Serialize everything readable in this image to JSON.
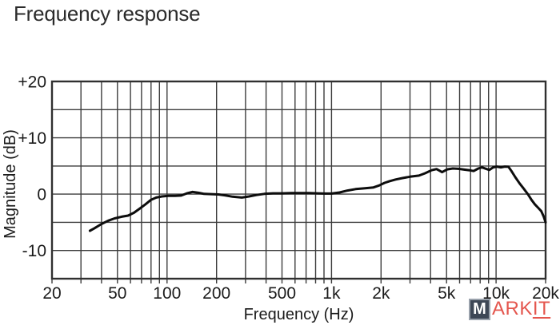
{
  "page": {
    "title": "Frequency response"
  },
  "chart_data": {
    "type": "line",
    "title": "Frequency response",
    "xlabel": "Frequency (Hz)",
    "ylabel": "Magnitude (dB)",
    "x_scale": "log",
    "xlim": [
      20,
      20000
    ],
    "ylim": [
      -15,
      20
    ],
    "grid": true,
    "legend": "none",
    "grid_color": "#3c3c3c",
    "border_color": "#303030",
    "label_color": "#1b1b1b",
    "y_gridline_step": 5,
    "x_gridlines": [
      20,
      30,
      40,
      50,
      60,
      70,
      80,
      90,
      100,
      200,
      300,
      400,
      500,
      600,
      700,
      800,
      900,
      1000,
      2000,
      3000,
      4000,
      5000,
      6000,
      7000,
      8000,
      9000,
      10000,
      20000
    ],
    "x_major_ticks": [
      {
        "value": 20,
        "label": "20"
      },
      {
        "value": 50,
        "label": "50"
      },
      {
        "value": 100,
        "label": "100"
      },
      {
        "value": 200,
        "label": "200"
      },
      {
        "value": 500,
        "label": "500"
      },
      {
        "value": 1000,
        "label": "1k"
      },
      {
        "value": 2000,
        "label": "2k"
      },
      {
        "value": 5000,
        "label": "5k"
      },
      {
        "value": 10000,
        "label": "10k"
      },
      {
        "value": 20000,
        "label": "20k"
      }
    ],
    "y_labeled_ticks": [
      {
        "value": 20,
        "label": "+20"
      },
      {
        "value": 10,
        "label": "+10"
      },
      {
        "value": 0,
        "label": "0"
      },
      {
        "value": -10,
        "label": "-10"
      }
    ],
    "series": [
      {
        "name": "Frequency response curve",
        "color": "#0d0d0d",
        "points": [
          [
            34,
            -6.5
          ],
          [
            36,
            -6.1
          ],
          [
            40,
            -5.3
          ],
          [
            44,
            -4.7
          ],
          [
            48,
            -4.3
          ],
          [
            53,
            -4.0
          ],
          [
            58,
            -3.8
          ],
          [
            63,
            -3.3
          ],
          [
            68,
            -2.6
          ],
          [
            74,
            -1.8
          ],
          [
            80,
            -1.0
          ],
          [
            86,
            -0.6
          ],
          [
            93,
            -0.4
          ],
          [
            102,
            -0.3
          ],
          [
            112,
            -0.3
          ],
          [
            122,
            -0.25
          ],
          [
            132,
            0.15
          ],
          [
            143,
            0.4
          ],
          [
            155,
            0.25
          ],
          [
            168,
            0.05
          ],
          [
            185,
            0.0
          ],
          [
            205,
            -0.05
          ],
          [
            225,
            -0.2
          ],
          [
            250,
            -0.45
          ],
          [
            285,
            -0.6
          ],
          [
            315,
            -0.4
          ],
          [
            350,
            -0.15
          ],
          [
            390,
            0.05
          ],
          [
            440,
            0.15
          ],
          [
            500,
            0.15
          ],
          [
            570,
            0.2
          ],
          [
            650,
            0.2
          ],
          [
            730,
            0.2
          ],
          [
            820,
            0.15
          ],
          [
            910,
            0.1
          ],
          [
            1000,
            0.1
          ],
          [
            1120,
            0.3
          ],
          [
            1250,
            0.65
          ],
          [
            1400,
            0.9
          ],
          [
            1600,
            1.05
          ],
          [
            1800,
            1.2
          ],
          [
            1950,
            1.55
          ],
          [
            2100,
            2.0
          ],
          [
            2250,
            2.3
          ],
          [
            2450,
            2.6
          ],
          [
            2700,
            2.85
          ],
          [
            3000,
            3.1
          ],
          [
            3400,
            3.3
          ],
          [
            3700,
            3.7
          ],
          [
            4050,
            4.25
          ],
          [
            4350,
            4.45
          ],
          [
            4700,
            3.9
          ],
          [
            5050,
            4.4
          ],
          [
            5450,
            4.55
          ],
          [
            5900,
            4.5
          ],
          [
            6400,
            4.35
          ],
          [
            6900,
            4.25
          ],
          [
            7300,
            4.1
          ],
          [
            7800,
            4.55
          ],
          [
            8200,
            4.75
          ],
          [
            8700,
            4.5
          ],
          [
            9100,
            4.3
          ],
          [
            9600,
            4.75
          ],
          [
            10100,
            4.9
          ],
          [
            10700,
            4.75
          ],
          [
            11300,
            4.9
          ],
          [
            11900,
            4.85
          ],
          [
            12400,
            4.1
          ],
          [
            13100,
            3.0
          ],
          [
            13900,
            1.9
          ],
          [
            14700,
            1.0
          ],
          [
            15600,
            0.0
          ],
          [
            16400,
            -1.0
          ],
          [
            17200,
            -1.8
          ],
          [
            18000,
            -2.4
          ],
          [
            18800,
            -3.0
          ],
          [
            19500,
            -4.0
          ],
          [
            20000,
            -5.0
          ]
        ]
      }
    ]
  },
  "watermark": {
    "box_letter": "M",
    "box_letter_color": "#ffffff",
    "box_bg": "#3d4756",
    "box_border": "#99a1ab",
    "text_plain": "ARK",
    "text_underlined": "IT",
    "text_color": "#e4564e"
  }
}
